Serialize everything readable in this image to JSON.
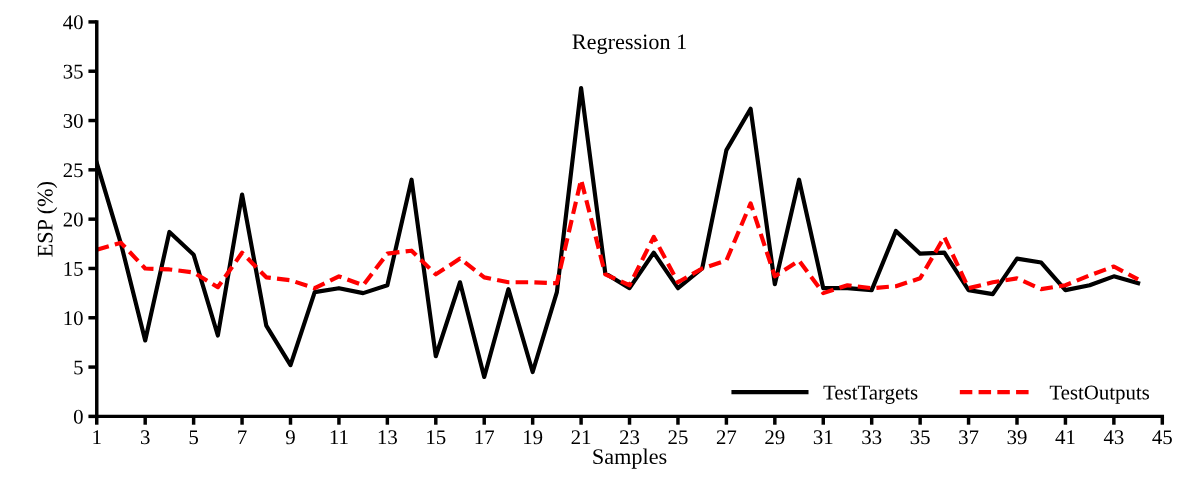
{
  "chart_data": {
    "type": "line",
    "title": "Regression 1",
    "xlabel": "Samples",
    "ylabel": "ESP (%)",
    "x": [
      1,
      2,
      3,
      4,
      5,
      6,
      7,
      8,
      9,
      10,
      11,
      12,
      13,
      14,
      15,
      16,
      17,
      18,
      19,
      20,
      21,
      22,
      23,
      24,
      25,
      26,
      27,
      28,
      29,
      30,
      31,
      32,
      33,
      34,
      35,
      36,
      37,
      38,
      39,
      40,
      41,
      42,
      43,
      44
    ],
    "series": [
      {
        "name": "TestTargets",
        "color": "#000000",
        "line_style": "solid",
        "values": [
          25.7,
          17.5,
          7.7,
          18.7,
          16.4,
          8.2,
          22.5,
          9.2,
          5.2,
          12.6,
          13,
          12.5,
          13.3,
          24,
          6.1,
          13.6,
          4,
          12.9,
          4.5,
          12.6,
          33.3,
          14.5,
          13,
          16.6,
          13,
          15,
          27,
          31.2,
          13.4,
          24,
          13,
          13,
          12.8,
          18.8,
          16.5,
          16.6,
          12.8,
          12.4,
          16,
          15.6,
          12.8,
          13.3,
          14.2,
          13.5
        ]
      },
      {
        "name": "TestOutputs",
        "color": "#ff0000",
        "line_style": "dashed",
        "values": [
          16.9,
          17.6,
          15,
          14.9,
          14.6,
          13.1,
          16.6,
          14.1,
          13.8,
          13,
          14.2,
          13.3,
          16.5,
          16.8,
          14.4,
          16,
          14.1,
          13.6,
          13.6,
          13.5,
          24,
          14.4,
          13.3,
          18.2,
          13.6,
          15,
          15.8,
          21.6,
          14.2,
          15.8,
          12.5,
          13.3,
          13,
          13.2,
          14,
          18.2,
          13,
          13.6,
          14,
          12.9,
          13.3,
          14.3,
          15.2,
          13.9
        ]
      }
    ],
    "xlim": [
      1,
      45
    ],
    "xticks": [
      1,
      3,
      5,
      7,
      9,
      11,
      13,
      15,
      17,
      19,
      21,
      23,
      25,
      27,
      29,
      31,
      33,
      35,
      37,
      39,
      41,
      43,
      45
    ],
    "ylim": [
      0,
      40
    ],
    "yticks": [
      0,
      5,
      10,
      15,
      20,
      25,
      30,
      35,
      40
    ],
    "grid": false,
    "legend": "bottom right",
    "marker": "none"
  }
}
